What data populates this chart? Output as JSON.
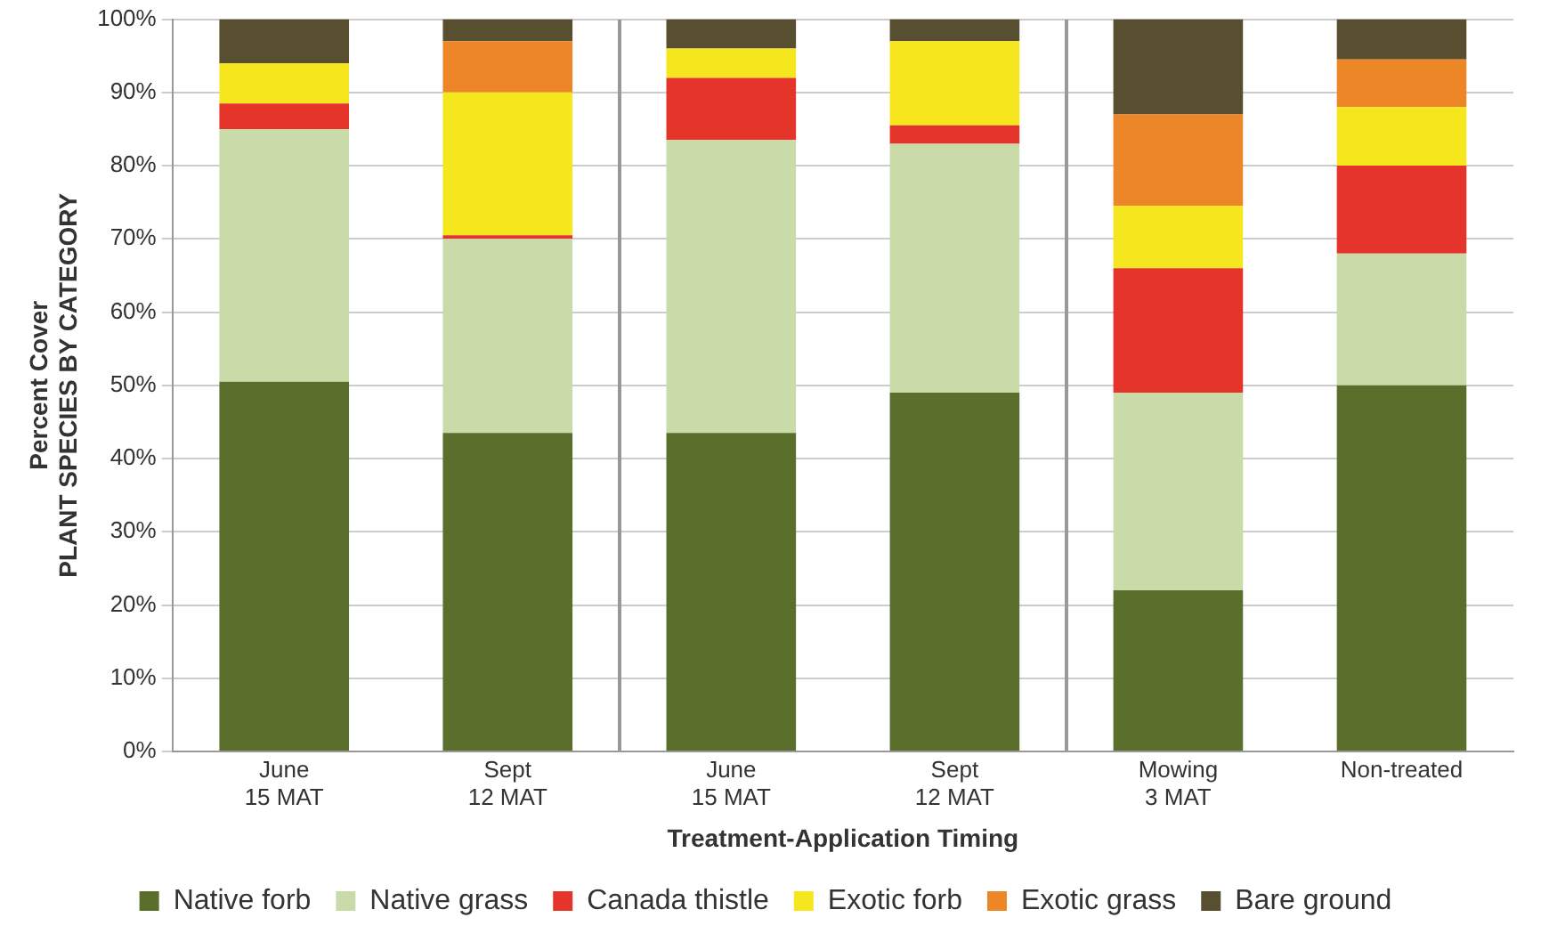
{
  "chart_data": {
    "type": "bar",
    "stacked": true,
    "xlabel": "Treatment-Application Timing",
    "ylabel": "Percent Cover\nPLANT SPECIES BY CATEGORY",
    "categories": [
      "June\n15 MAT",
      "Sept\n12 MAT",
      "June\n15 MAT",
      "Sept\n12 MAT",
      "Mowing\n3 MAT",
      "Non-treated"
    ],
    "series": [
      {
        "name": "Native forb",
        "color": "#5b6f2c",
        "values": [
          50.5,
          43.5,
          43.5,
          49,
          22,
          50
        ]
      },
      {
        "name": "Native grass",
        "color": "#c8dba8",
        "values": [
          34.5,
          26.5,
          40,
          34,
          27,
          18
        ]
      },
      {
        "name": "Canada thistle",
        "color": "#e5352b",
        "values": [
          3.5,
          0.5,
          8.5,
          2.5,
          17,
          12
        ]
      },
      {
        "name": "Exotic forb",
        "color": "#f6e61e",
        "values": [
          5.5,
          19.5,
          4,
          11.5,
          8.5,
          8
        ]
      },
      {
        "name": "Exotic grass",
        "color": "#ec8626",
        "values": [
          0,
          7,
          0,
          0,
          12.5,
          6.5
        ]
      },
      {
        "name": "Bare ground",
        "color": "#574f30",
        "values": [
          6,
          3,
          4,
          3,
          13,
          5.5
        ]
      }
    ],
    "ylim": [
      0,
      100
    ],
    "yticks": [
      {
        "value": 0,
        "label": "0%"
      },
      {
        "value": 10,
        "label": "10%"
      },
      {
        "value": 20,
        "label": "20%"
      },
      {
        "value": 30,
        "label": "30%"
      },
      {
        "value": 40,
        "label": "40%"
      },
      {
        "value": 50,
        "label": "50%"
      },
      {
        "value": 60,
        "label": "60%"
      },
      {
        "value": 70,
        "label": "70%"
      },
      {
        "value": 80,
        "label": "80%"
      },
      {
        "value": 90,
        "label": "90%"
      },
      {
        "value": 100,
        "label": "100%"
      }
    ],
    "grid": "y",
    "legend": "bottom"
  }
}
